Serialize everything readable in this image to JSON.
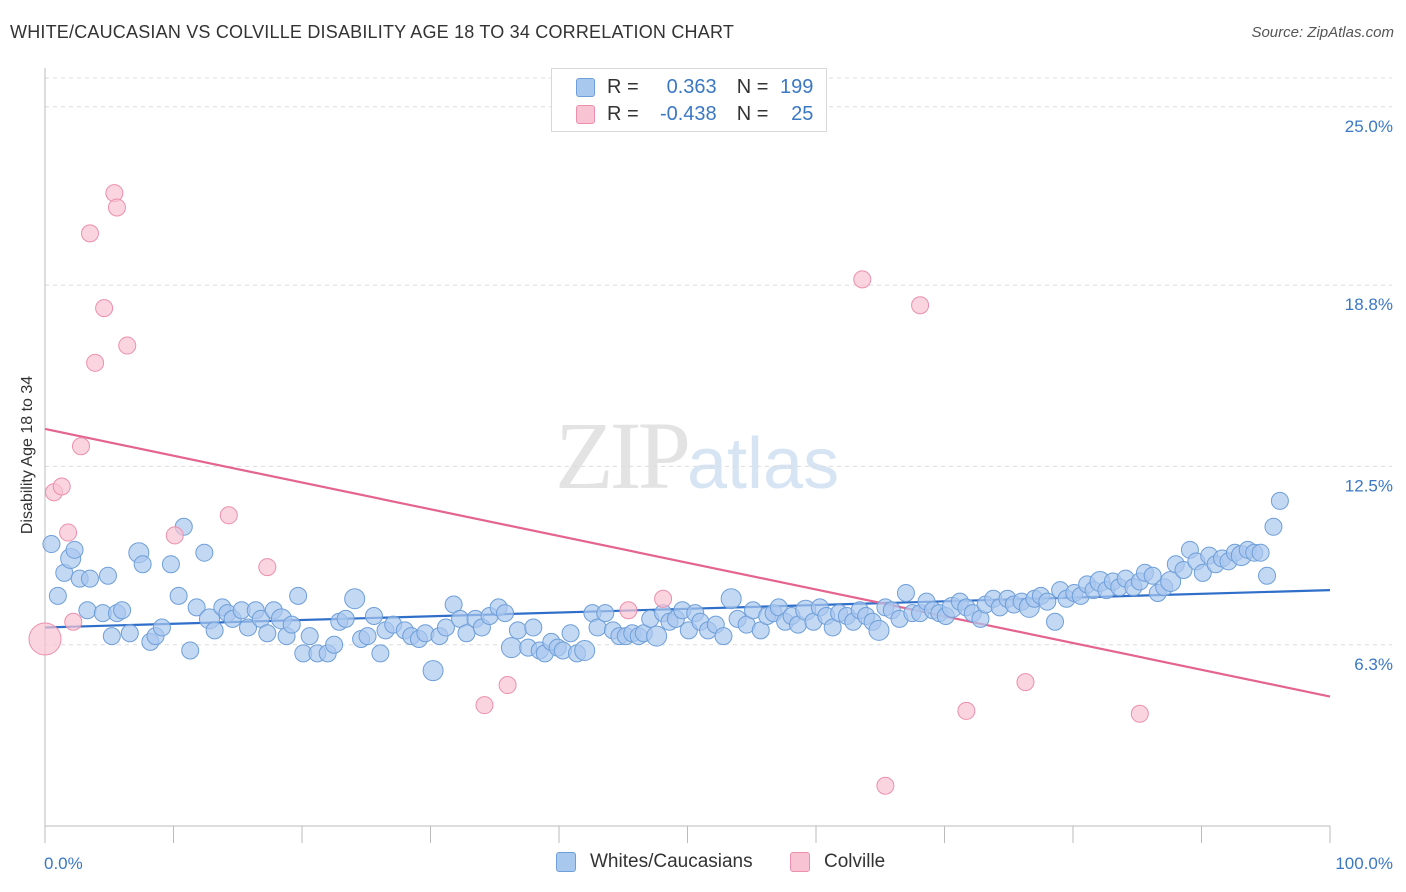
{
  "title": "WHITE/CAUCASIAN VS COLVILLE DISABILITY AGE 18 TO 34 CORRELATION CHART",
  "source": "Source: ZipAtlas.com",
  "watermark": {
    "zip": "ZIP",
    "atlas": "atlas"
  },
  "legend": {
    "r_label": "R =",
    "n_label": "N =",
    "rows": [
      {
        "r": "0.363",
        "n": "199",
        "color": "#a9c8ee",
        "border": "#6e9fd9"
      },
      {
        "r": "-0.438",
        "n": "25",
        "color": "#f8c3d3",
        "border": "#ec8fae"
      }
    ]
  },
  "bottom_legend": [
    "Whites/Caucasians",
    "Colville"
  ],
  "chart_data": {
    "type": "scatter",
    "title": "WHITE/CAUCASIAN VS COLVILLE DISABILITY AGE 18 TO 34 CORRELATION CHART",
    "xlabel": "",
    "ylabel": "Disability Age 18 to 34",
    "xlim": [
      0,
      100
    ],
    "ylim": [
      0,
      26
    ],
    "x_tick_labels": [
      "0.0%",
      "100.0%"
    ],
    "y_ticks": [
      6.3,
      12.5,
      18.8,
      25.0
    ],
    "y_tick_labels": [
      "6.3%",
      "12.5%",
      "18.8%",
      "25.0%"
    ],
    "grid": true,
    "legend_position": "top-center",
    "series": [
      {
        "name": "Whites/Caucasians",
        "color": "#a9c8ee",
        "stroke": "#6e9fd9",
        "trend": {
          "x": [
            0,
            100
          ],
          "y": [
            6.9,
            8.2
          ],
          "color": "#2f6fc9"
        },
        "points": [
          [
            0.5,
            9.8
          ],
          [
            1,
            8
          ],
          [
            1.5,
            8.8
          ],
          [
            2,
            9.3
          ],
          [
            2.3,
            9.6
          ],
          [
            2.7,
            8.6
          ],
          [
            3.3,
            7.5
          ],
          [
            3.5,
            8.6
          ],
          [
            4.5,
            7.4
          ],
          [
            4.9,
            8.7
          ],
          [
            5.2,
            6.6
          ],
          [
            5.6,
            7.4
          ],
          [
            6,
            7.5
          ],
          [
            6.6,
            6.7
          ],
          [
            7.3,
            9.5
          ],
          [
            7.6,
            9.1
          ],
          [
            8.2,
            6.4
          ],
          [
            8.6,
            6.6
          ],
          [
            9.1,
            6.9
          ],
          [
            9.8,
            9.1
          ],
          [
            10.4,
            8
          ],
          [
            10.8,
            10.4
          ],
          [
            11.3,
            6.1
          ],
          [
            11.8,
            7.6
          ],
          [
            12.4,
            9.5
          ],
          [
            12.8,
            7.2
          ],
          [
            13.2,
            6.8
          ],
          [
            13.8,
            7.6
          ],
          [
            14.2,
            7.4
          ],
          [
            14.6,
            7.2
          ],
          [
            15.3,
            7.5
          ],
          [
            15.8,
            6.9
          ],
          [
            16.4,
            7.5
          ],
          [
            16.8,
            7.2
          ],
          [
            17.3,
            6.7
          ],
          [
            17.8,
            7.5
          ],
          [
            18.4,
            7.2
          ],
          [
            18.8,
            6.6
          ],
          [
            19.2,
            7
          ],
          [
            19.7,
            8
          ],
          [
            20.1,
            6
          ],
          [
            20.6,
            6.6
          ],
          [
            21.2,
            6
          ],
          [
            22,
            6
          ],
          [
            22.5,
            6.3
          ],
          [
            22.9,
            7.1
          ],
          [
            23.4,
            7.2
          ],
          [
            24.1,
            7.9
          ],
          [
            24.6,
            6.5
          ],
          [
            25.1,
            6.6
          ],
          [
            25.6,
            7.3
          ],
          [
            26.1,
            6
          ],
          [
            26.5,
            6.8
          ],
          [
            27.1,
            7
          ],
          [
            28,
            6.8
          ],
          [
            28.5,
            6.6
          ],
          [
            29.1,
            6.5
          ],
          [
            29.6,
            6.7
          ],
          [
            30.2,
            5.4
          ],
          [
            30.7,
            6.6
          ],
          [
            31.2,
            6.9
          ],
          [
            31.8,
            7.7
          ],
          [
            32.3,
            7.2
          ],
          [
            32.8,
            6.7
          ],
          [
            33.5,
            7.2
          ],
          [
            34,
            6.9
          ],
          [
            34.6,
            7.3
          ],
          [
            35.3,
            7.6
          ],
          [
            35.8,
            7.4
          ],
          [
            36.3,
            6.2
          ],
          [
            36.8,
            6.8
          ],
          [
            37.6,
            6.2
          ],
          [
            38,
            6.9
          ],
          [
            38.5,
            6.1
          ],
          [
            38.9,
            6
          ],
          [
            39.4,
            6.4
          ],
          [
            39.9,
            6.2
          ],
          [
            40.3,
            6.1
          ],
          [
            40.9,
            6.7
          ],
          [
            41.4,
            6
          ],
          [
            42,
            6.1
          ],
          [
            42.6,
            7.4
          ],
          [
            43,
            6.9
          ],
          [
            43.6,
            7.4
          ],
          [
            44.2,
            6.8
          ],
          [
            44.7,
            6.6
          ],
          [
            45.2,
            6.6
          ],
          [
            45.7,
            6.7
          ],
          [
            46.2,
            6.6
          ],
          [
            46.6,
            6.7
          ],
          [
            47.1,
            7.2
          ],
          [
            47.6,
            6.6
          ],
          [
            48.1,
            7.4
          ],
          [
            48.6,
            7.1
          ],
          [
            49.1,
            7.2
          ],
          [
            49.6,
            7.5
          ],
          [
            50.1,
            6.8
          ],
          [
            50.6,
            7.4
          ],
          [
            51,
            7.1
          ],
          [
            51.6,
            6.8
          ],
          [
            52.2,
            7
          ],
          [
            52.8,
            6.6
          ],
          [
            53.4,
            7.9
          ],
          [
            53.9,
            7.2
          ],
          [
            54.6,
            7
          ],
          [
            55.1,
            7.5
          ],
          [
            55.7,
            6.8
          ],
          [
            56.2,
            7.3
          ],
          [
            56.7,
            7.4
          ],
          [
            57.1,
            7.6
          ],
          [
            57.6,
            7.1
          ],
          [
            58.1,
            7.3
          ],
          [
            58.6,
            7
          ],
          [
            59.2,
            7.5
          ],
          [
            59.8,
            7.1
          ],
          [
            60.3,
            7.6
          ],
          [
            60.8,
            7.3
          ],
          [
            61.3,
            6.9
          ],
          [
            61.8,
            7.4
          ],
          [
            62.4,
            7.3
          ],
          [
            62.9,
            7.1
          ],
          [
            63.4,
            7.5
          ],
          [
            63.9,
            7.3
          ],
          [
            64.4,
            7.1
          ],
          [
            64.9,
            6.8
          ],
          [
            65.4,
            7.6
          ],
          [
            65.9,
            7.5
          ],
          [
            66.5,
            7.2
          ],
          [
            67,
            8.1
          ],
          [
            67.5,
            7.4
          ],
          [
            68.1,
            7.4
          ],
          [
            68.6,
            7.8
          ],
          [
            69.1,
            7.5
          ],
          [
            69.6,
            7.4
          ],
          [
            70.1,
            7.3
          ],
          [
            70.6,
            7.6
          ],
          [
            71.2,
            7.8
          ],
          [
            71.7,
            7.6
          ],
          [
            72.2,
            7.4
          ],
          [
            72.8,
            7.2
          ],
          [
            73.2,
            7.7
          ],
          [
            73.8,
            7.9
          ],
          [
            74.3,
            7.6
          ],
          [
            74.9,
            7.9
          ],
          [
            75.4,
            7.7
          ],
          [
            76,
            7.8
          ],
          [
            76.6,
            7.6
          ],
          [
            77,
            7.9
          ],
          [
            77.5,
            8
          ],
          [
            78,
            7.8
          ],
          [
            78.6,
            7.1
          ],
          [
            79,
            8.2
          ],
          [
            79.5,
            7.9
          ],
          [
            80.1,
            8.1
          ],
          [
            80.6,
            8
          ],
          [
            81.1,
            8.4
          ],
          [
            81.6,
            8.2
          ],
          [
            82.1,
            8.5
          ],
          [
            82.6,
            8.2
          ],
          [
            83.1,
            8.5
          ],
          [
            83.6,
            8.3
          ],
          [
            84.1,
            8.6
          ],
          [
            84.7,
            8.3
          ],
          [
            85.2,
            8.5
          ],
          [
            85.6,
            8.8
          ],
          [
            86.2,
            8.7
          ],
          [
            86.6,
            8.1
          ],
          [
            87.1,
            8.3
          ],
          [
            87.6,
            8.5
          ],
          [
            88,
            9.1
          ],
          [
            88.6,
            8.9
          ],
          [
            89.1,
            9.6
          ],
          [
            89.6,
            9.2
          ],
          [
            90.1,
            8.8
          ],
          [
            90.6,
            9.4
          ],
          [
            91.1,
            9.1
          ],
          [
            91.6,
            9.3
          ],
          [
            92.1,
            9.2
          ],
          [
            92.6,
            9.5
          ],
          [
            93.1,
            9.4
          ],
          [
            93.6,
            9.6
          ],
          [
            94.1,
            9.5
          ],
          [
            94.6,
            9.5
          ],
          [
            95.1,
            8.7
          ],
          [
            95.6,
            10.4
          ],
          [
            96.1,
            11.3
          ]
        ]
      },
      {
        "name": "Colville",
        "color": "#f8c3d3",
        "stroke": "#ec8fae",
        "trend": {
          "x": [
            0,
            100
          ],
          "y": [
            13.8,
            4.5
          ],
          "color": "#e4648f"
        },
        "points": [
          [
            0,
            6.5
          ],
          [
            0.7,
            11.6
          ],
          [
            1.3,
            11.8
          ],
          [
            1.8,
            10.2
          ],
          [
            2.2,
            7.1
          ],
          [
            2.8,
            13.2
          ],
          [
            3.5,
            20.6
          ],
          [
            3.9,
            16.1
          ],
          [
            4.6,
            18
          ],
          [
            5.4,
            22
          ],
          [
            5.6,
            21.5
          ],
          [
            6.4,
            16.7
          ],
          [
            10.1,
            10.1
          ],
          [
            14.3,
            10.8
          ],
          [
            17.3,
            9
          ],
          [
            34.2,
            4.2
          ],
          [
            36,
            4.9
          ],
          [
            45.4,
            7.5
          ],
          [
            48.1,
            7.9
          ],
          [
            63.6,
            19
          ],
          [
            65.4,
            1.4
          ],
          [
            68.1,
            18.1
          ],
          [
            71.7,
            4
          ],
          [
            76.3,
            5
          ],
          [
            85.2,
            3.9
          ]
        ]
      }
    ]
  }
}
